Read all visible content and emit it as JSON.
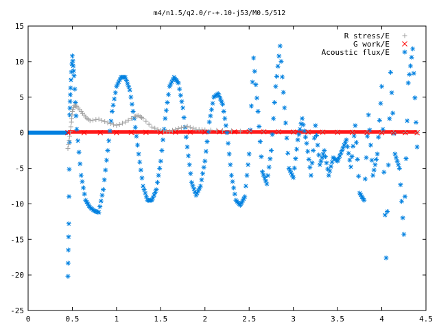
{
  "chart_data": {
    "type": "scatter",
    "title": "m4/n1.5/q2.0/r-+.10-j53/M0.5/512",
    "xlabel": "",
    "ylabel": "",
    "xlim": [
      0,
      4.5
    ],
    "ylim": [
      -25,
      15
    ],
    "xticks": [
      "0",
      "0.5",
      "1",
      "1.5",
      "2",
      "2.5",
      "3",
      "3.5",
      "4",
      "4.5"
    ],
    "yticks": [
      "-25",
      "-20",
      "-15",
      "-10",
      "-5",
      "0",
      "5",
      "10",
      "15"
    ],
    "grid": false,
    "legend_position": "top-right",
    "colors": {
      "r_stress": "#a0a0a0",
      "g_work": "#ff0000",
      "acoustic_flux": "#0080e0"
    },
    "series": [
      {
        "name": "R stress/E",
        "marker": "plus",
        "x": [
          0.45,
          0.47,
          0.49,
          0.5,
          0.52,
          0.55,
          0.6,
          0.65,
          0.7,
          0.8,
          0.9,
          1.0,
          1.1,
          1.2,
          1.25,
          1.3,
          1.4,
          1.5,
          1.6,
          1.7,
          1.8,
          1.9,
          2.0,
          2.2,
          2.5,
          3.0,
          3.5,
          4.0,
          4.4
        ],
        "values": [
          -2.2,
          -0.5,
          1.5,
          3.0,
          3.8,
          3.7,
          3.0,
          2.2,
          1.7,
          1.9,
          1.4,
          1.0,
          1.5,
          2.3,
          2.4,
          2.0,
          0.8,
          0.3,
          0.2,
          0.6,
          0.9,
          0.5,
          0.4,
          0.3,
          0.2,
          0.1,
          0.1,
          0.05,
          0.0
        ]
      },
      {
        "name": "G work/E",
        "marker": "cross",
        "x": [
          0.45,
          1.0,
          1.5,
          2.0,
          2.5,
          3.0,
          3.5,
          4.0,
          4.4
        ],
        "values": [
          0.0,
          0.0,
          0.05,
          0.1,
          0.15,
          0.1,
          0.05,
          0.0,
          0.0
        ]
      },
      {
        "name": "Acoustic flux/E",
        "marker": "star",
        "x": [
          0.45,
          0.46,
          0.47,
          0.48,
          0.5,
          0.52,
          0.55,
          0.6,
          0.65,
          0.7,
          0.75,
          0.8,
          0.85,
          0.9,
          0.95,
          1.0,
          1.05,
          1.1,
          1.15,
          1.2,
          1.25,
          1.3,
          1.35,
          1.4,
          1.45,
          1.5,
          1.55,
          1.6,
          1.65,
          1.7,
          1.75,
          1.8,
          1.85,
          1.9,
          1.95,
          2.0,
          2.05,
          2.1,
          2.15,
          2.2,
          2.25,
          2.3,
          2.35,
          2.4,
          2.45,
          2.5,
          2.55,
          2.6,
          2.65,
          2.7,
          2.75,
          2.8,
          2.85,
          2.9,
          2.95,
          3.0,
          3.05,
          3.1,
          3.15,
          3.2,
          3.25,
          3.3,
          3.35,
          3.4,
          3.45,
          3.5,
          3.55,
          3.6,
          3.65,
          3.7,
          3.75,
          3.8,
          3.85,
          3.9,
          3.95,
          4.0,
          4.05,
          4.1,
          4.15,
          4.2,
          4.25,
          4.3,
          4.35,
          4.4
        ],
        "values": [
          -20.2,
          -12.8,
          2.5,
          6.3,
          10.8,
          8.0,
          0.5,
          -6.0,
          -9.5,
          -10.5,
          -11.0,
          -11.2,
          -8.0,
          -2.5,
          3.0,
          6.5,
          7.8,
          7.8,
          6.0,
          2.0,
          -3.0,
          -7.5,
          -9.5,
          -9.5,
          -8.0,
          -4.0,
          2.0,
          6.5,
          7.8,
          7.0,
          3.5,
          -2.0,
          -7.0,
          -8.8,
          -7.5,
          -4.0,
          1.5,
          5.0,
          5.5,
          4.0,
          0.0,
          -6.0,
          -9.5,
          -10.2,
          -9.0,
          -3.0,
          10.5,
          3.0,
          -5.5,
          -7.2,
          -2.5,
          6.5,
          12.2,
          3.5,
          -5.0,
          -6.3,
          -1.0,
          2.0,
          -1.5,
          -6.0,
          1.0,
          -4.5,
          -2.5,
          -6.0,
          -3.5,
          -4.0,
          -2.5,
          -1.0,
          -4.8,
          1.0,
          -8.5,
          -9.5,
          2.5,
          -6.0,
          -3.0,
          6.5,
          -17.6,
          8.5,
          -3.0,
          -5.0,
          -14.3,
          7.0,
          11.8,
          -2.0
        ]
      }
    ]
  }
}
